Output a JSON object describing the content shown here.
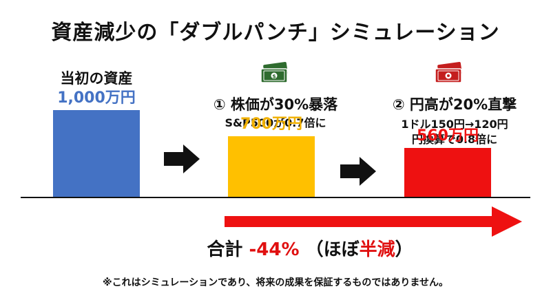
{
  "title": "資産減少の「ダブルパンチ」シミュレーション",
  "chart_data": {
    "type": "bar",
    "categories": [
      "当初の資産",
      "① 株価が30%暴落",
      "② 円高が20%直撃"
    ],
    "values": [
      1000,
      700,
      560
    ],
    "value_labels": [
      "1,000万円",
      "700万円",
      "560万円"
    ],
    "unit": "万円",
    "ylim": [
      0,
      1000
    ],
    "bar_colors": [
      "#4472c4",
      "#ffc000",
      "#ee1111"
    ],
    "value_label_colors": [
      "#4472c4",
      "#f0b000",
      "#ee1111"
    ]
  },
  "steps": [
    {
      "heading": "当初の資産",
      "notes": []
    },
    {
      "heading": "① 株価が30%暴落",
      "notes": [
        "S&P500が0.7倍に"
      ],
      "icon": "dollar-bill-icon",
      "icon_color": "#2e6b2e"
    },
    {
      "heading": "② 円高が20%直撃",
      "notes": [
        "1ドル150円→120円",
        "円換算で0.8倍に"
      ],
      "icon": "yen-bill-icon",
      "icon_color": "#c41e1e"
    }
  ],
  "total": {
    "prefix": "合計",
    "value": "-44%",
    "suffix_open": "（ほぼ",
    "suffix_accent": "半減",
    "suffix_close": "）"
  },
  "disclaimer": "※これはシミュレーションであり、将来の成果を保証するものではありません。",
  "colors": {
    "arrow_red": "#ee1111",
    "arrow_black": "#111111"
  }
}
